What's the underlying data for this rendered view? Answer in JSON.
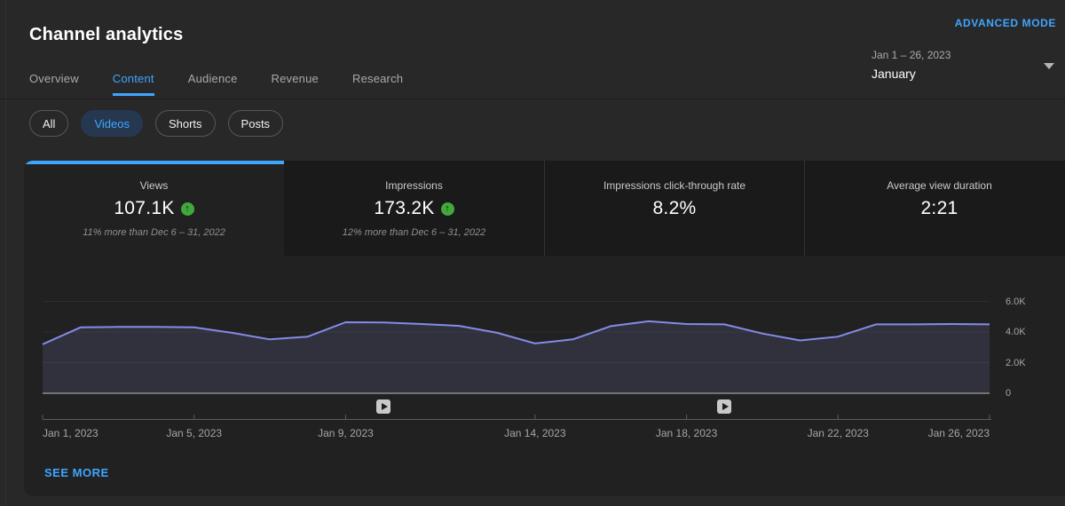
{
  "header": {
    "title": "Channel analytics",
    "advanced_mode_label": "ADVANCED MODE"
  },
  "date_picker": {
    "range_label": "Jan 1 – 26, 2023",
    "period_label": "January"
  },
  "nav_tabs": [
    {
      "label": "Overview",
      "selected": false
    },
    {
      "label": "Content",
      "selected": true
    },
    {
      "label": "Audience",
      "selected": false
    },
    {
      "label": "Revenue",
      "selected": false
    },
    {
      "label": "Research",
      "selected": false
    }
  ],
  "filter_chips": [
    {
      "label": "All",
      "selected": false
    },
    {
      "label": "Videos",
      "selected": true
    },
    {
      "label": "Shorts",
      "selected": false
    },
    {
      "label": "Posts",
      "selected": false
    }
  ],
  "metric_cards": [
    {
      "label": "Views",
      "value": "107.1K",
      "trend": "up",
      "delta": "11% more than Dec 6 – 31, 2022",
      "selected": true
    },
    {
      "label": "Impressions",
      "value": "173.2K",
      "trend": "up",
      "delta": "12% more than Dec 6 – 31, 2022",
      "selected": false
    },
    {
      "label": "Impressions click-through rate",
      "value": "8.2%",
      "selected": false
    },
    {
      "label": "Average view duration",
      "value": "2:21",
      "selected": false
    }
  ],
  "chart_data": {
    "type": "area",
    "title": "",
    "xlabel": "",
    "ylabel": "",
    "legend": "none",
    "grid": true,
    "ylim": [
      0,
      6000
    ],
    "x": [
      "Jan 1",
      "Jan 2",
      "Jan 3",
      "Jan 4",
      "Jan 5",
      "Jan 6",
      "Jan 7",
      "Jan 8",
      "Jan 9",
      "Jan 10",
      "Jan 11",
      "Jan 12",
      "Jan 13",
      "Jan 14",
      "Jan 15",
      "Jan 16",
      "Jan 17",
      "Jan 18",
      "Jan 19",
      "Jan 20",
      "Jan 21",
      "Jan 22",
      "Jan 23",
      "Jan 24",
      "Jan 25",
      "Jan 26"
    ],
    "values": [
      3200,
      4300,
      4330,
      4330,
      4300,
      3950,
      3520,
      3700,
      4640,
      4620,
      4520,
      4400,
      3950,
      3250,
      3520,
      4380,
      4700,
      4520,
      4500,
      3900,
      3450,
      3700,
      4500,
      4500,
      4520,
      4500
    ],
    "y_ticks": [
      {
        "label": "6.0K",
        "value": 6000
      },
      {
        "label": "4.0K",
        "value": 4000
      },
      {
        "label": "2.0K",
        "value": 2000
      },
      {
        "label": "0",
        "value": 0
      }
    ],
    "x_ticks": [
      {
        "day": 1,
        "label": "Jan 1, 2023"
      },
      {
        "day": 5,
        "label": "Jan 5, 2023"
      },
      {
        "day": 9,
        "label": "Jan 9, 2023"
      },
      {
        "day": 14,
        "label": "Jan 14, 2023"
      },
      {
        "day": 18,
        "label": "Jan 18, 2023"
      },
      {
        "day": 22,
        "label": "Jan 22, 2023"
      },
      {
        "day": 26,
        "label": "Jan 26, 2023"
      }
    ],
    "video_markers": [
      {
        "day": 10
      },
      {
        "day": 19
      }
    ],
    "line_color": "#848be8",
    "fill_color": "#30313d"
  },
  "footer": {
    "see_more_label": "SEE MORE"
  }
}
